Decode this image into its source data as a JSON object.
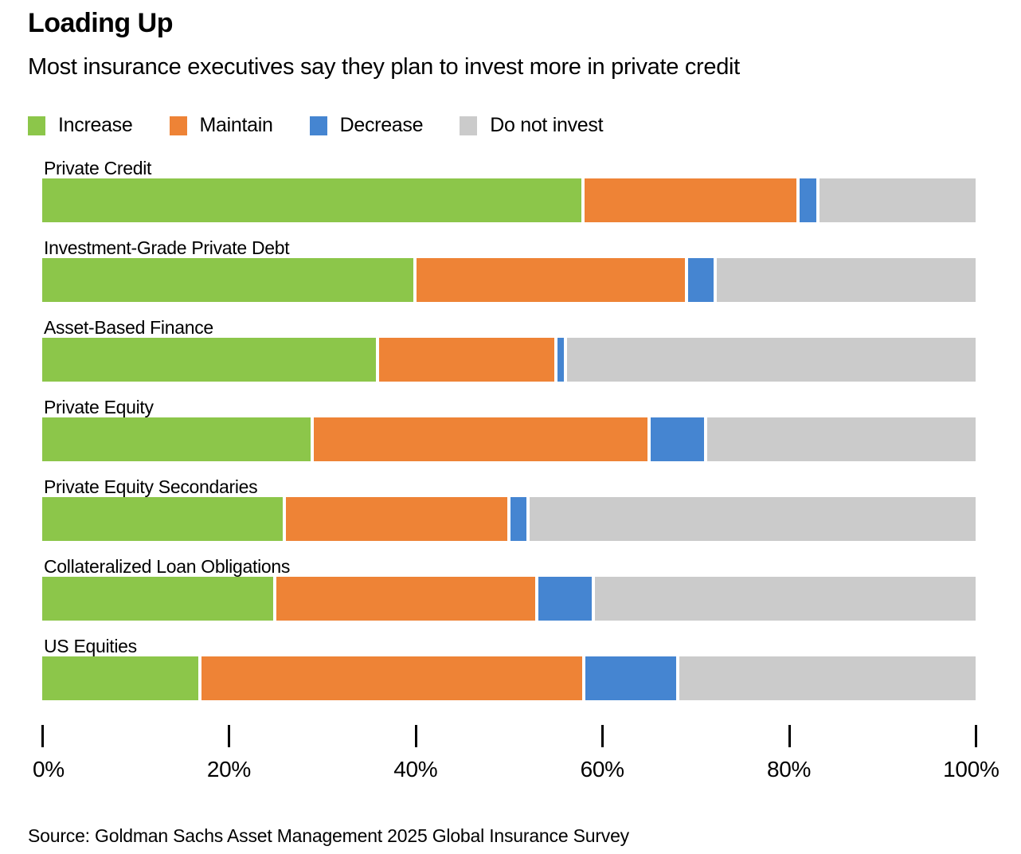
{
  "header": {
    "title": "Loading Up",
    "subtitle": "Most insurance executives say they plan to invest more in private credit"
  },
  "legend": [
    {
      "label": "Increase",
      "color": "#8CC64A"
    },
    {
      "label": "Maintain",
      "color": "#EE8336"
    },
    {
      "label": "Decrease",
      "color": "#4585D1"
    },
    {
      "label": "Do not invest",
      "color": "#CBCBCB"
    }
  ],
  "colors": {
    "increase": "#8CC64A",
    "maintain": "#EE8336",
    "decrease": "#4585D1",
    "do_not_invest": "#CBCBCB",
    "tick": "#000000"
  },
  "chart_data": {
    "type": "bar",
    "stacked": true,
    "orientation": "horizontal",
    "title": "Loading Up",
    "subtitle": "Most insurance executives say they plan to invest more in private credit",
    "xlabel": "",
    "ylabel": "",
    "xlim": [
      0,
      100
    ],
    "grid": false,
    "legend_position": "top",
    "categories": [
      "Private Credit",
      "Investment-Grade Private Debt",
      "Asset-Based Finance",
      "Private Equity",
      "Private Equity Secondaries",
      "Collateralized Loan Obligations",
      "US Equities"
    ],
    "series": [
      {
        "name": "Increase",
        "color": "#8CC64A",
        "values": [
          58,
          40,
          36,
          29,
          26,
          25,
          17
        ]
      },
      {
        "name": "Maintain",
        "color": "#EE8336",
        "values": [
          23,
          29,
          19,
          36,
          24,
          28,
          41
        ]
      },
      {
        "name": "Decrease",
        "color": "#4585D1",
        "values": [
          2,
          3,
          1,
          6,
          2,
          6,
          10
        ]
      },
      {
        "name": "Do not invest",
        "color": "#CBCBCB",
        "values": [
          17,
          28,
          44,
          29,
          48,
          41,
          32
        ]
      }
    ],
    "x_axis": {
      "unit": "%",
      "ticks": [
        {
          "label": "0%",
          "value": 0
        },
        {
          "label": "20%",
          "value": 20
        },
        {
          "label": "40%",
          "value": 40
        },
        {
          "label": "60%",
          "value": 60
        },
        {
          "label": "80%",
          "value": 80
        },
        {
          "label": "100%",
          "value": 100
        }
      ]
    }
  },
  "source": "Source: Goldman Sachs Asset Management 2025 Global Insurance Survey"
}
